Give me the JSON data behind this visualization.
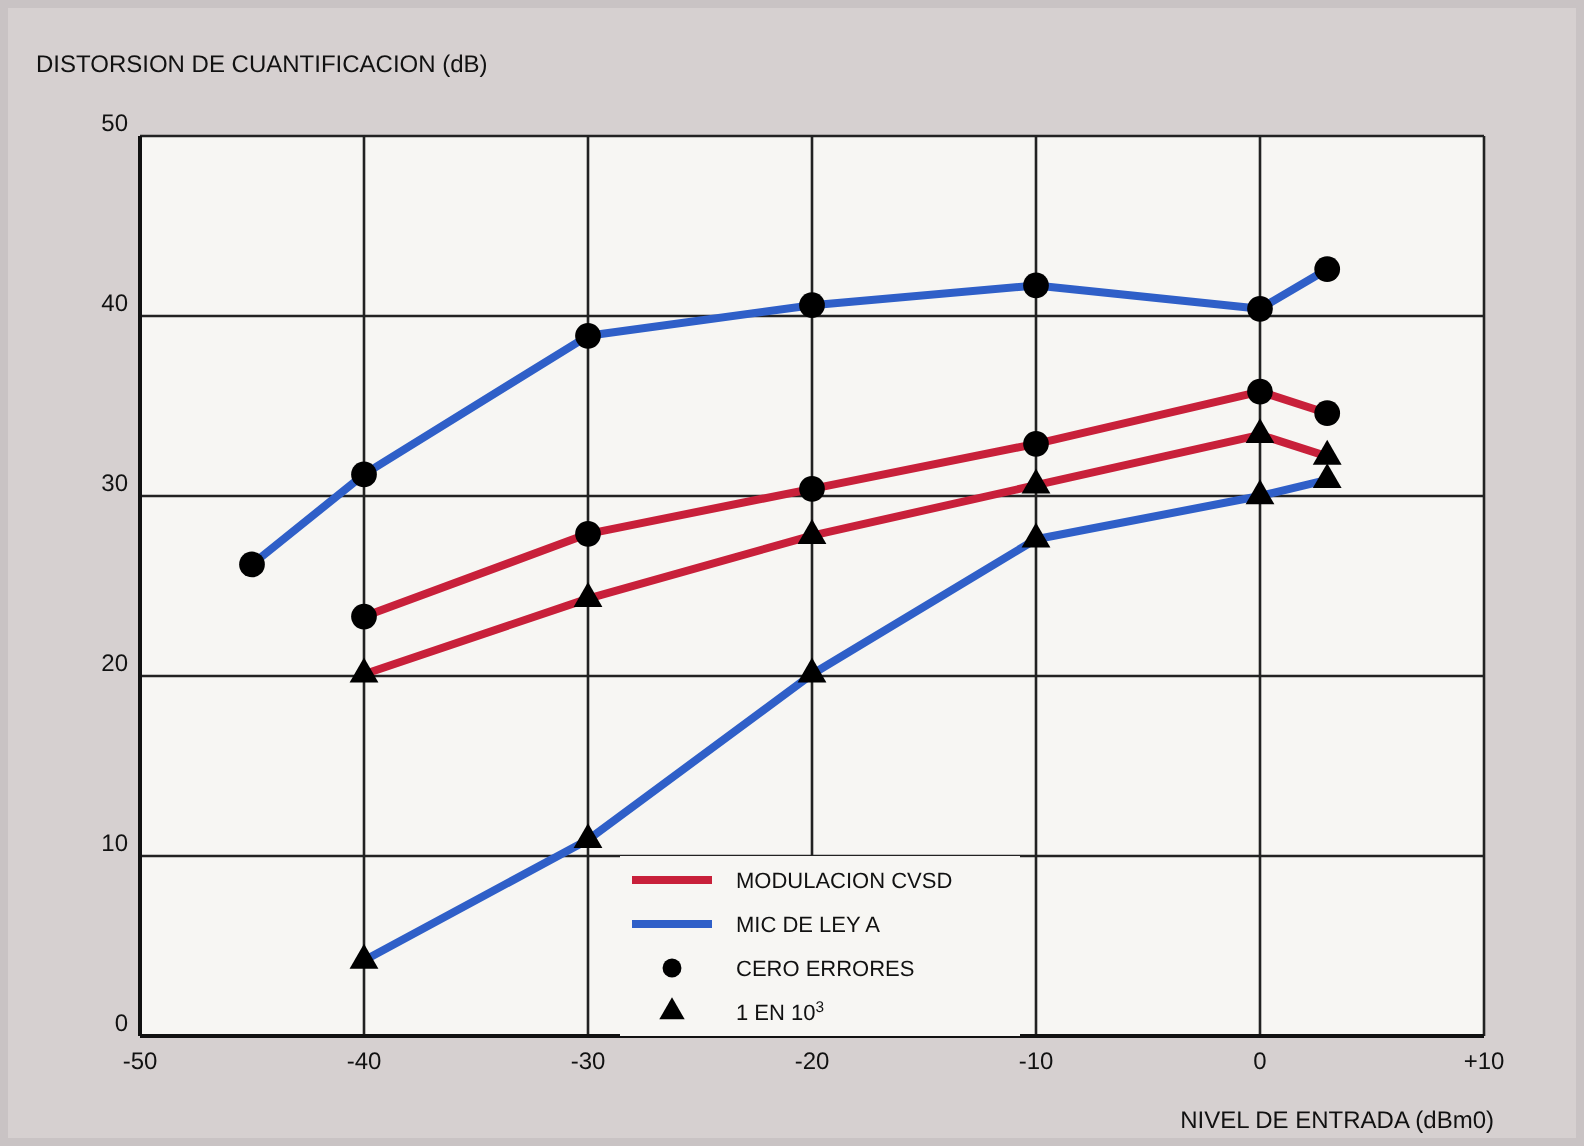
{
  "chart_data": {
    "type": "line",
    "ylabel": "DISTORSION DE CUANTIFICACION (dB)",
    "xlabel": "NIVEL DE ENTRADA (dBm0)",
    "xlim": [
      -50,
      10
    ],
    "xticks": [
      -50,
      -40,
      -30,
      -20,
      -10,
      0,
      {
        "value": 10,
        "label": "+10"
      }
    ],
    "ylim": [
      0,
      50
    ],
    "yticks": [
      0,
      10,
      20,
      30,
      40,
      50
    ],
    "grid": true,
    "legend": "bottom",
    "line_style": "solid",
    "series": [
      {
        "name": "MIC DE LEY A",
        "color": "#2f5fc8",
        "marker": "circle",
        "x": [
          -45,
          -40,
          -30,
          -20,
          -10,
          0,
          3
        ],
        "values": [
          26.2,
          31.2,
          38.9,
          40.6,
          41.7,
          40.4,
          42.6
        ]
      },
      {
        "name": "MODULACION CVSD",
        "color": "#c8203a",
        "marker": "circle",
        "x": [
          -40,
          -30,
          -20,
          -10,
          0,
          3
        ],
        "values": [
          23.3,
          27.9,
          30.4,
          32.9,
          35.8,
          34.6
        ]
      },
      {
        "color": "#c8203a",
        "marker": "triangle",
        "x": [
          -40,
          -30,
          -20,
          -10,
          0,
          3
        ],
        "values": [
          20.1,
          24.3,
          27.8,
          30.6,
          33.4,
          32.2
        ]
      },
      {
        "color": "#2f5fc8",
        "marker": "triangle",
        "x": [
          -40,
          -30,
          -20,
          -10,
          0,
          3
        ],
        "values": [
          4.2,
          10.9,
          20.1,
          27.6,
          30,
          30.9
        ]
      }
    ],
    "annotations": [
      "CERO ERRORES",
      "1 EN 10$^{3}$"
    ]
  }
}
